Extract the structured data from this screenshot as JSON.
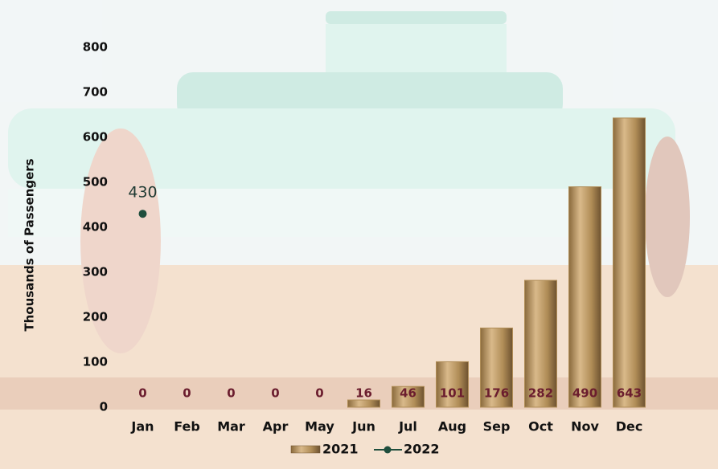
{
  "chart_data": {
    "type": "bar",
    "y_label": "Thousands of Passengers",
    "categories": [
      "Jan",
      "Feb",
      "Mar",
      "Apr",
      "May",
      "Jun",
      "Jul",
      "Aug",
      "Sep",
      "Oct",
      "Nov",
      "Dec"
    ],
    "series": [
      {
        "name": "2021",
        "type": "bar",
        "color": "#b08d57",
        "values": [
          0,
          0,
          0,
          0,
          0,
          16,
          46,
          101,
          176,
          282,
          490,
          643
        ]
      },
      {
        "name": "2022",
        "type": "line",
        "color": "#1f4e3d",
        "values": [
          430,
          null,
          null,
          null,
          null,
          null,
          null,
          null,
          null,
          null,
          null,
          null
        ]
      }
    ],
    "ylim": [
      0,
      800
    ],
    "yticks": [
      0,
      100,
      200,
      300,
      400,
      500,
      600,
      700,
      800
    ],
    "legend": "bottom"
  }
}
